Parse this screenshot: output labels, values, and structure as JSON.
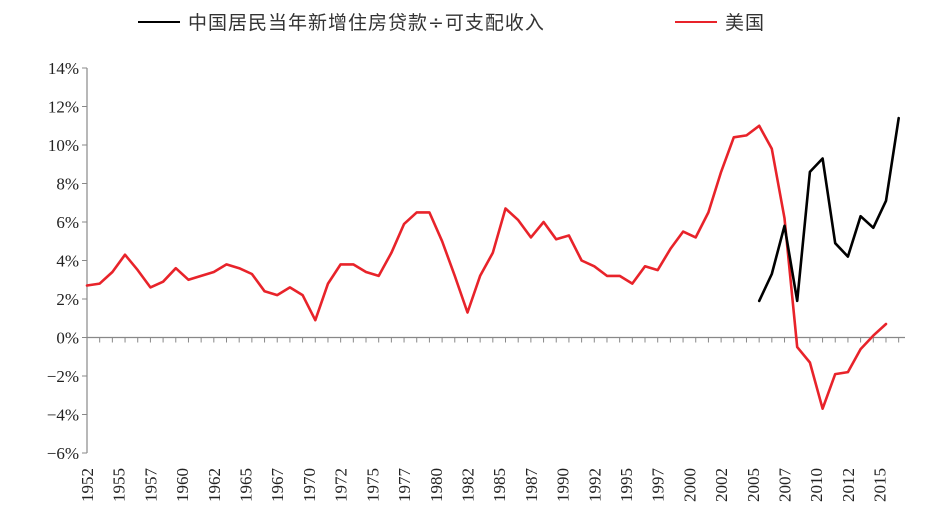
{
  "chart_data": {
    "type": "line",
    "legend_placement": "top",
    "grid": false,
    "ylim": [
      -6,
      14
    ],
    "yticks": [
      "14%",
      "12%",
      "10%",
      "8%",
      "6%",
      "4%",
      "2%",
      "0%",
      "−2%",
      "−4%",
      "−6%"
    ],
    "ytick_values": [
      14,
      12,
      10,
      8,
      6,
      4,
      2,
      0,
      -2,
      -4,
      -6
    ],
    "xlim": [
      1952,
      2016.5
    ],
    "xticks": [
      "1952",
      "1955",
      "1957",
      "1960",
      "1962",
      "1965",
      "1967",
      "1970",
      "1972",
      "1975",
      "1977",
      "1980",
      "1982",
      "1985",
      "1987",
      "1990",
      "1992",
      "1995",
      "1997",
      "2000",
      "2002",
      "2005",
      "2007",
      "2010",
      "2012",
      "2015"
    ],
    "xtick_values": [
      1952,
      1954.5,
      1957,
      1959.5,
      1962,
      1964.5,
      1967,
      1969.5,
      1972,
      1974.5,
      1977,
      1979.5,
      1982,
      1984.5,
      1987,
      1989.5,
      1992,
      1994.5,
      1997,
      1999.5,
      2002,
      2004.5,
      2007,
      2009.5,
      2012,
      2014.5
    ],
    "series": [
      {
        "name": "中国居民当年新增住房贷款÷可支配收入",
        "color": "#000000",
        "x": [
          2005,
          2006,
          2007,
          2008,
          2009,
          2010,
          2011,
          2012,
          2013,
          2014,
          2015,
          2016
        ],
        "y": [
          1.9,
          3.3,
          5.8,
          1.9,
          8.6,
          9.3,
          4.9,
          4.2,
          6.3,
          5.7,
          7.1,
          11.4
        ]
      },
      {
        "name": "美国",
        "color": "#e8232a",
        "x": [
          1952,
          1953,
          1954,
          1955,
          1956,
          1957,
          1958,
          1959,
          1960,
          1961,
          1962,
          1963,
          1964,
          1965,
          1966,
          1967,
          1968,
          1969,
          1970,
          1971,
          1972,
          1973,
          1974,
          1975,
          1976,
          1977,
          1978,
          1979,
          1980,
          1981,
          1982,
          1983,
          1984,
          1985,
          1986,
          1987,
          1988,
          1989,
          1990,
          1991,
          1992,
          1993,
          1994,
          1995,
          1996,
          1997,
          1998,
          1999,
          2000,
          2001,
          2002,
          2003,
          2004,
          2005,
          2006,
          2007,
          2008,
          2009,
          2010,
          2011,
          2012,
          2013,
          2014,
          2015
        ],
        "y": [
          2.7,
          2.8,
          3.4,
          4.3,
          3.5,
          2.6,
          2.9,
          3.6,
          3.0,
          3.2,
          3.4,
          3.8,
          3.6,
          3.3,
          2.4,
          2.2,
          2.6,
          2.2,
          0.9,
          2.8,
          3.8,
          3.8,
          3.4,
          3.2,
          4.4,
          5.9,
          6.5,
          6.5,
          5.0,
          3.2,
          1.3,
          3.2,
          4.4,
          6.7,
          6.1,
          5.2,
          6.0,
          5.1,
          5.3,
          4.0,
          3.7,
          3.2,
          3.2,
          2.8,
          3.7,
          3.5,
          4.6,
          5.5,
          5.2,
          6.5,
          8.6,
          10.4,
          10.5,
          11.0,
          9.8,
          6.2,
          -0.5,
          -1.3,
          -3.7,
          -1.9,
          -1.8,
          -0.6,
          0.1,
          0.7
        ]
      }
    ]
  }
}
